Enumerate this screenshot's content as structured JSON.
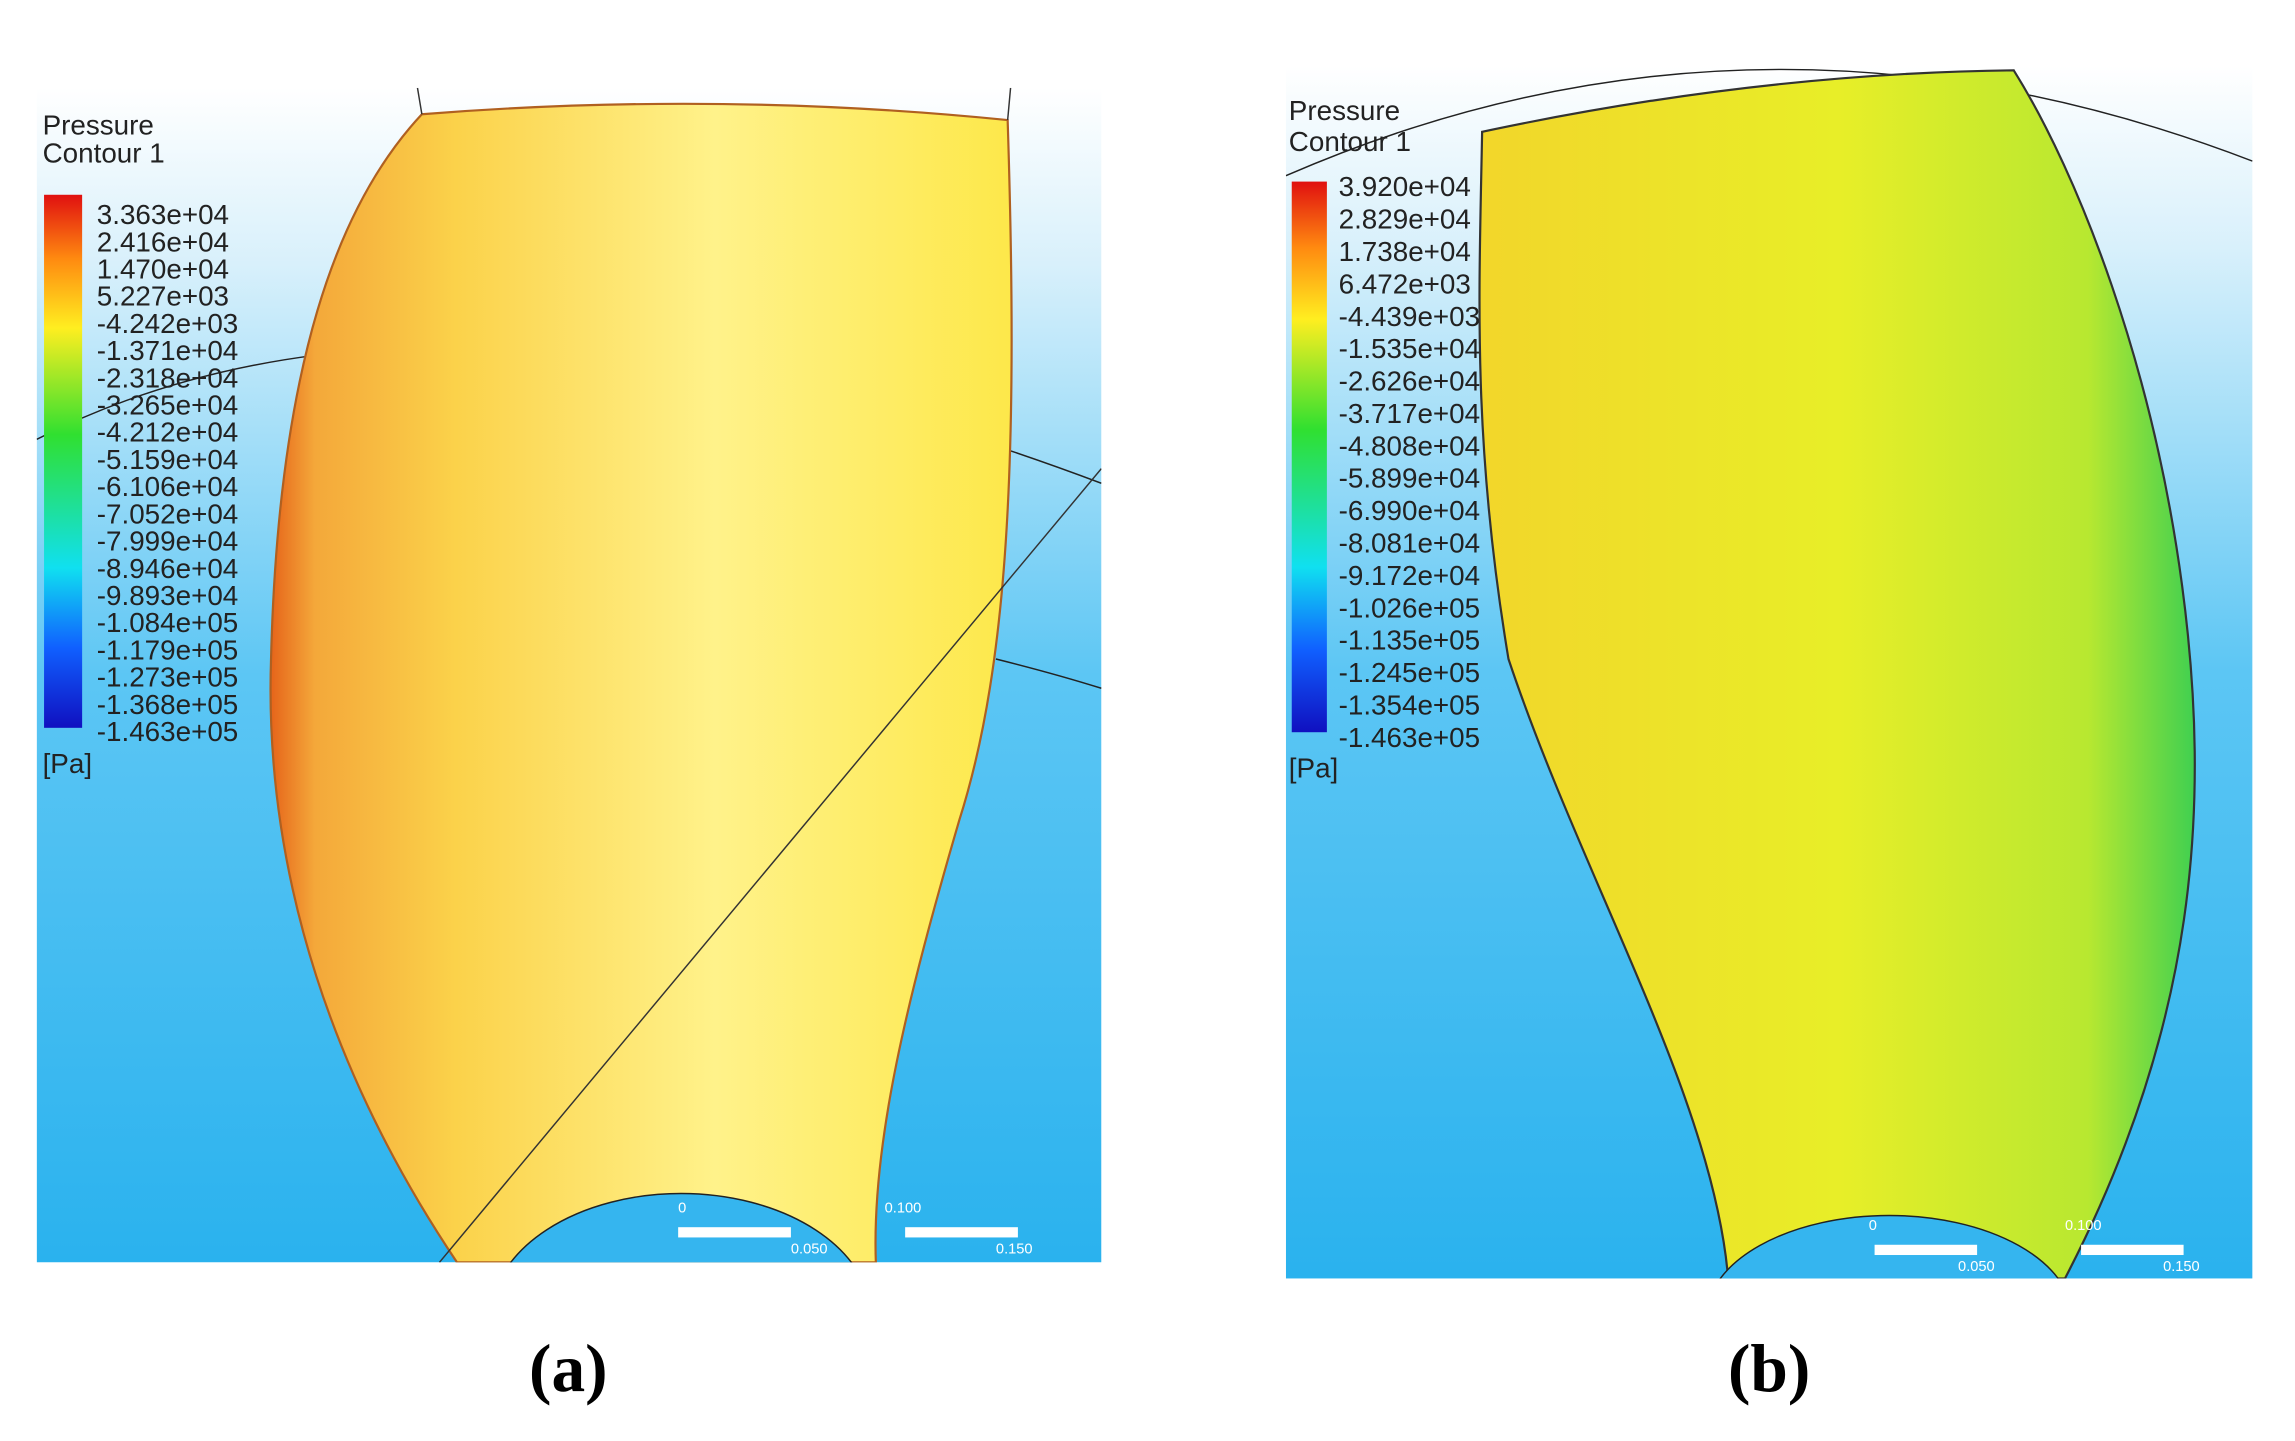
{
  "panels": [
    {
      "title": "Pressure",
      "subtitle": "Contour 1",
      "legend": [
        "3.363e+04",
        "2.416e+04",
        "1.470e+04",
        "5.227e+03",
        "-4.242e+03",
        "-1.371e+04",
        "-2.318e+04",
        "-3.265e+04",
        "-4.212e+04",
        "-5.159e+04",
        "-6.106e+04",
        "-7.052e+04",
        "-7.999e+04",
        "-8.946e+04",
        "-9.893e+04",
        "-1.084e+05",
        "-1.179e+05",
        "-1.273e+05",
        "-1.368e+05",
        "-1.463e+05"
      ],
      "unit": "[Pa]",
      "scale_top": [
        "0",
        "0.100"
      ],
      "scale_bottom": [
        "0.050",
        "0.150"
      ],
      "caption": "(a)"
    },
    {
      "title": "Pressure",
      "subtitle": "Contour 1",
      "legend": [
        "3.920e+04",
        "2.829e+04",
        "1.738e+04",
        "6.472e+03",
        "-4.439e+03",
        "-1.535e+04",
        "-2.626e+04",
        "-3.717e+04",
        "-4.808e+04",
        "-5.899e+04",
        "-6.990e+04",
        "-8.081e+04",
        "-9.172e+04",
        "-1.026e+05",
        "-1.135e+05",
        "-1.245e+05",
        "-1.354e+05",
        "-1.463e+05"
      ],
      "unit": "[Pa]",
      "scale_top": [
        "0",
        "0.100"
      ],
      "scale_bottom": [
        "0.050",
        "0.150"
      ],
      "caption": "(b)"
    }
  ]
}
